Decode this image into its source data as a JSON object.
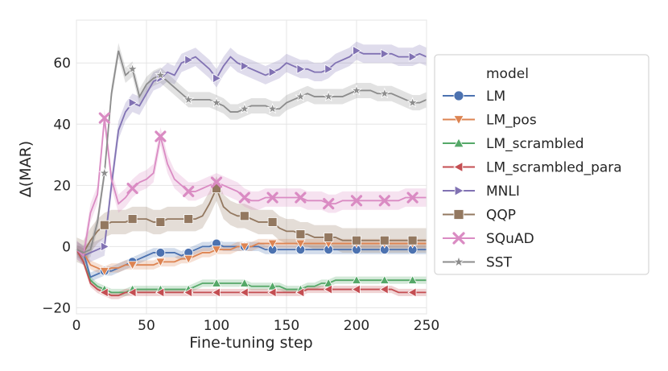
{
  "chart_data": {
    "type": "line",
    "xlabel": "Fine-tuning step",
    "ylabel": "Δ(MAR)",
    "xlim": [
      0,
      250
    ],
    "ylim": [
      -22,
      74
    ],
    "xticks": [
      0,
      50,
      100,
      150,
      200,
      250
    ],
    "yticks": [
      -20,
      0,
      20,
      40,
      60
    ],
    "grid": true,
    "legend": {
      "title": "model",
      "position": "right"
    },
    "series": [
      {
        "name": "LM",
        "color": "#4c72b0",
        "marker": "circle",
        "x": [
          0,
          5,
          10,
          15,
          20,
          25,
          30,
          35,
          40,
          45,
          50,
          55,
          60,
          65,
          70,
          75,
          80,
          85,
          90,
          95,
          100,
          105,
          110,
          115,
          120,
          125,
          130,
          135,
          140,
          145,
          150,
          155,
          160,
          165,
          170,
          175,
          180,
          185,
          190,
          195,
          200,
          205,
          210,
          215,
          220,
          225,
          230,
          235,
          240,
          245,
          250
        ],
        "y": [
          -1,
          -2,
          -10,
          -9,
          -8,
          -8,
          -7,
          -6,
          -5,
          -4,
          -3,
          -2,
          -2,
          -2,
          -2,
          -3,
          -2,
          -1,
          0,
          0,
          1,
          0,
          0,
          0,
          0,
          0,
          0,
          -1,
          -1,
          -1,
          -1,
          -1,
          -1,
          -1,
          -1,
          -1,
          -1,
          -1,
          -1,
          -1,
          -1,
          -1,
          -1,
          -1,
          -1,
          -1,
          -1,
          -1,
          -1,
          -1,
          -1
        ],
        "band": 1.5,
        "markers": [
          20,
          40,
          60,
          80,
          100,
          120,
          140,
          160,
          180,
          200,
          220,
          240
        ]
      },
      {
        "name": "LM_pos",
        "color": "#dd8452",
        "marker": "triangle-down",
        "x": [
          0,
          5,
          10,
          15,
          20,
          25,
          30,
          35,
          40,
          45,
          50,
          55,
          60,
          65,
          70,
          75,
          80,
          85,
          90,
          95,
          100,
          105,
          110,
          115,
          120,
          125,
          130,
          135,
          140,
          145,
          150,
          155,
          160,
          165,
          170,
          175,
          180,
          185,
          190,
          195,
          200,
          205,
          210,
          215,
          220,
          225,
          230,
          235,
          240,
          245,
          250
        ],
        "y": [
          -1,
          -2,
          -6,
          -7,
          -8,
          -7,
          -7,
          -6,
          -6,
          -6,
          -6,
          -6,
          -5,
          -5,
          -5,
          -4,
          -4,
          -3,
          -2,
          -2,
          -1,
          -1,
          -1,
          0,
          0,
          0,
          1,
          1,
          1,
          1,
          1,
          1,
          1,
          1,
          1,
          1,
          1,
          1,
          1,
          1,
          1,
          1,
          1,
          1,
          1,
          1,
          1,
          1,
          1,
          1,
          1
        ],
        "band": 1.5,
        "markers": [
          20,
          40,
          60,
          80,
          100,
          120,
          140,
          160,
          180,
          200,
          220,
          240
        ]
      },
      {
        "name": "LM_scrambled",
        "color": "#55a868",
        "marker": "triangle-up",
        "x": [
          0,
          5,
          10,
          15,
          20,
          25,
          30,
          35,
          40,
          45,
          50,
          55,
          60,
          65,
          70,
          75,
          80,
          85,
          90,
          95,
          100,
          105,
          110,
          115,
          120,
          125,
          130,
          135,
          140,
          145,
          150,
          155,
          160,
          165,
          170,
          175,
          180,
          185,
          190,
          195,
          200,
          205,
          210,
          215,
          220,
          225,
          230,
          235,
          240,
          245,
          250
        ],
        "y": [
          -1,
          -5,
          -11,
          -13,
          -14,
          -15,
          -15,
          -15,
          -14,
          -14,
          -14,
          -14,
          -14,
          -14,
          -14,
          -14,
          -14,
          -13,
          -12,
          -12,
          -12,
          -12,
          -12,
          -12,
          -12,
          -13,
          -13,
          -13,
          -13,
          -13,
          -14,
          -14,
          -14,
          -13,
          -13,
          -12,
          -12,
          -11,
          -11,
          -11,
          -11,
          -11,
          -11,
          -11,
          -11,
          -11,
          -11,
          -11,
          -11,
          -11,
          -11
        ],
        "band": 1.2,
        "markers": [
          20,
          40,
          60,
          80,
          100,
          120,
          140,
          160,
          180,
          200,
          220,
          240
        ]
      },
      {
        "name": "LM_scrambled_para",
        "color": "#c44e52",
        "marker": "triangle-left",
        "x": [
          0,
          5,
          10,
          15,
          20,
          25,
          30,
          35,
          40,
          45,
          50,
          55,
          60,
          65,
          70,
          75,
          80,
          85,
          90,
          95,
          100,
          105,
          110,
          115,
          120,
          125,
          130,
          135,
          140,
          145,
          150,
          155,
          160,
          165,
          170,
          175,
          180,
          185,
          190,
          195,
          200,
          205,
          210,
          215,
          220,
          225,
          230,
          235,
          240,
          245,
          250
        ],
        "y": [
          -1,
          -5,
          -12,
          -14,
          -15,
          -16,
          -16,
          -15,
          -15,
          -15,
          -15,
          -15,
          -15,
          -15,
          -15,
          -15,
          -15,
          -15,
          -15,
          -15,
          -15,
          -15,
          -15,
          -15,
          -15,
          -15,
          -15,
          -15,
          -15,
          -15,
          -15,
          -15,
          -15,
          -14,
          -14,
          -14,
          -14,
          -14,
          -14,
          -14,
          -14,
          -14,
          -14,
          -14,
          -14,
          -14,
          -15,
          -15,
          -15,
          -15,
          -15
        ],
        "band": 1.2,
        "markers": [
          20,
          40,
          60,
          80,
          100,
          120,
          140,
          160,
          180,
          200,
          220,
          240
        ]
      },
      {
        "name": "MNLI",
        "color": "#8172b3",
        "marker": "triangle-right",
        "x": [
          0,
          5,
          10,
          15,
          20,
          25,
          30,
          35,
          40,
          45,
          50,
          55,
          60,
          65,
          70,
          75,
          80,
          85,
          90,
          95,
          100,
          105,
          110,
          115,
          120,
          125,
          130,
          135,
          140,
          145,
          150,
          155,
          160,
          165,
          170,
          175,
          180,
          185,
          190,
          195,
          200,
          205,
          210,
          215,
          220,
          225,
          230,
          235,
          240,
          245,
          250
        ],
        "y": [
          -1,
          -3,
          -2,
          -1,
          0,
          20,
          38,
          44,
          47,
          46,
          50,
          54,
          55,
          57,
          56,
          60,
          61,
          62,
          60,
          58,
          55,
          59,
          62,
          60,
          59,
          58,
          57,
          56,
          57,
          58,
          60,
          59,
          58,
          58,
          57,
          57,
          58,
          60,
          61,
          62,
          64,
          63,
          63,
          63,
          63,
          63,
          62,
          62,
          62,
          63,
          62
        ],
        "band": 3,
        "markers": [
          20,
          40,
          60,
          80,
          100,
          120,
          140,
          160,
          180,
          200,
          220,
          240
        ]
      },
      {
        "name": "QQP",
        "color": "#937860",
        "marker": "square",
        "x": [
          0,
          5,
          10,
          15,
          20,
          25,
          30,
          35,
          40,
          45,
          50,
          55,
          60,
          65,
          70,
          75,
          80,
          85,
          90,
          95,
          100,
          105,
          110,
          115,
          120,
          125,
          130,
          135,
          140,
          145,
          150,
          155,
          160,
          165,
          170,
          175,
          180,
          185,
          190,
          195,
          200,
          205,
          210,
          215,
          220,
          225,
          230,
          235,
          240,
          245,
          250
        ],
        "y": [
          -1,
          -2,
          2,
          5,
          7,
          8,
          8,
          8,
          9,
          9,
          9,
          8,
          8,
          9,
          9,
          9,
          9,
          9,
          10,
          14,
          19,
          13,
          11,
          10,
          10,
          9,
          8,
          8,
          8,
          6,
          5,
          5,
          4,
          4,
          3,
          3,
          3,
          3,
          2,
          2,
          2,
          2,
          2,
          2,
          2,
          2,
          2,
          2,
          2,
          2,
          2
        ],
        "band": 4,
        "markers": [
          20,
          40,
          60,
          80,
          100,
          120,
          140,
          160,
          180,
          200,
          220,
          240
        ]
      },
      {
        "name": "SQuAD",
        "color": "#da8bc3",
        "marker": "x",
        "x": [
          0,
          5,
          10,
          15,
          20,
          25,
          30,
          35,
          40,
          45,
          50,
          55,
          60,
          65,
          70,
          75,
          80,
          85,
          90,
          95,
          100,
          105,
          110,
          115,
          120,
          125,
          130,
          135,
          140,
          145,
          150,
          155,
          160,
          165,
          170,
          175,
          180,
          185,
          190,
          195,
          200,
          205,
          210,
          215,
          220,
          225,
          230,
          235,
          240,
          245,
          250
        ],
        "y": [
          -1,
          -3,
          11,
          17,
          42,
          22,
          14,
          16,
          19,
          21,
          22,
          24,
          36,
          27,
          22,
          20,
          18,
          18,
          19,
          20,
          21,
          20,
          19,
          18,
          16,
          15,
          15,
          16,
          16,
          16,
          16,
          16,
          16,
          15,
          15,
          15,
          14,
          14,
          15,
          15,
          15,
          15,
          15,
          15,
          15,
          15,
          15,
          16,
          16,
          16,
          16
        ],
        "band": 3,
        "markers": [
          20,
          40,
          60,
          80,
          100,
          120,
          140,
          160,
          180,
          200,
          220,
          240
        ]
      },
      {
        "name": "SST",
        "color": "#8c8c8c",
        "marker": "star",
        "x": [
          0,
          5,
          10,
          15,
          20,
          25,
          30,
          35,
          40,
          45,
          50,
          55,
          60,
          65,
          70,
          75,
          80,
          85,
          90,
          95,
          100,
          105,
          110,
          115,
          120,
          125,
          130,
          135,
          140,
          145,
          150,
          155,
          160,
          165,
          170,
          175,
          180,
          185,
          190,
          195,
          200,
          205,
          210,
          215,
          220,
          225,
          230,
          235,
          240,
          245,
          250
        ],
        "y": [
          -1,
          -2,
          -1,
          8,
          24,
          50,
          64,
          56,
          58,
          49,
          53,
          55,
          56,
          54,
          52,
          50,
          48,
          48,
          48,
          48,
          47,
          46,
          44,
          44,
          45,
          46,
          46,
          46,
          45,
          45,
          47,
          48,
          49,
          50,
          49,
          49,
          49,
          49,
          49,
          50,
          51,
          51,
          51,
          50,
          50,
          50,
          49,
          48,
          47,
          47,
          48
        ],
        "band": 2.5,
        "markers": [
          20,
          40,
          60,
          80,
          100,
          120,
          140,
          160,
          180,
          200,
          220,
          240
        ]
      }
    ]
  }
}
